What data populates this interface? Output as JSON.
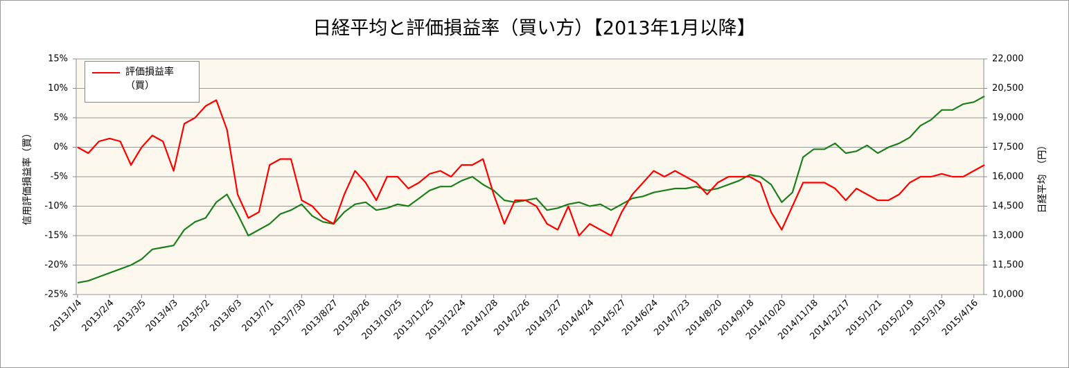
{
  "chart_data": {
    "type": "line",
    "title": "日経平均と評価損益率（買い方）【2013年1月以降】",
    "y_label": "信用評価損益率（買）",
    "y2_label": "日経平均　（円）",
    "categories": [
      "2013/1/4",
      null,
      null,
      "2013/2/4",
      null,
      null,
      "2013/3/5",
      null,
      null,
      "2013/4/3",
      null,
      null,
      "2013/5/2",
      null,
      null,
      "2013/6/3",
      null,
      null,
      "2013/7/1",
      null,
      null,
      "2013/7/30",
      null,
      null,
      "2013/8/27",
      null,
      null,
      "2013/9/26",
      null,
      null,
      "2013/10/25",
      null,
      null,
      "2013/11/25",
      null,
      null,
      "2013/12/24",
      null,
      null,
      "2014/1/28",
      null,
      null,
      "2014/2/26",
      null,
      null,
      "2014/3/27",
      null,
      null,
      "2014/4/24",
      null,
      null,
      "2014/5/27",
      null,
      null,
      "2014/6/24",
      null,
      null,
      "2014/7/23",
      null,
      null,
      "2014/8/20",
      null,
      null,
      "2014/9/18",
      null,
      null,
      "2014/10/20",
      null,
      null,
      "2014/11/18",
      null,
      null,
      "2014/12/17",
      null,
      null,
      "2015/1/21",
      null,
      null,
      "2015/2/19",
      null,
      null,
      "2015/3/19",
      null,
      null,
      "2015/4/16",
      null
    ],
    "series": [
      {
        "name": "評価損益率（買）",
        "color": "#ff0000",
        "values": [
          0,
          -1,
          1,
          1.5,
          1,
          -3,
          0,
          2,
          1,
          -4,
          4,
          5,
          7,
          8,
          3,
          -8,
          -12,
          -11,
          -3,
          -2,
          -2,
          -9,
          -10,
          -12,
          -13,
          -8,
          -4,
          -6,
          -9,
          -5,
          -5,
          -7,
          -6,
          -4.5,
          -4,
          -5,
          -3,
          -3,
          -2,
          -8,
          -13,
          -9,
          -9,
          -10,
          -13,
          -14,
          -10,
          -15,
          -13,
          -14,
          -15,
          -11,
          -8,
          -6,
          -4,
          -5,
          -4,
          -5,
          -6,
          -8,
          -6,
          -5,
          -5,
          -5,
          -6,
          -11,
          -14,
          -10,
          -6,
          -6,
          -6,
          -7,
          -9,
          -7,
          -8,
          -9,
          -9,
          -8,
          -6,
          -5,
          -5,
          -4.5,
          -5,
          -5,
          -4,
          -3
        ]
      },
      {
        "color": "#1a7f1a",
        "axis": "y2",
        "values": [
          10600,
          10700,
          10900,
          11100,
          11300,
          11500,
          11800,
          12300,
          12400,
          12500,
          13300,
          13700,
          13900,
          14700,
          15100,
          14100,
          13000,
          13300,
          13600,
          14100,
          14300,
          14600,
          14000,
          13700,
          13600,
          14200,
          14600,
          14700,
          14300,
          14400,
          14600,
          14500,
          14900,
          15300,
          15500,
          15500,
          15800,
          16000,
          15600,
          15300,
          14800,
          14700,
          14800,
          14900,
          14300,
          14400,
          14600,
          14700,
          14500,
          14600,
          14300,
          14600,
          14900,
          15000,
          15200,
          15300,
          15400,
          15400,
          15500,
          15300,
          15400,
          15600,
          15800,
          16100,
          16000,
          15600,
          14700,
          15200,
          17000,
          17400,
          17400,
          17700,
          17200,
          17300,
          17600,
          17200,
          17500,
          17700,
          18000,
          18600,
          18900,
          19400,
          19400,
          19700,
          19800,
          20100
        ]
      }
    ],
    "ylim": [
      -25,
      15
    ],
    "yticks": [
      {
        "value": 15,
        "label": "15%"
      },
      {
        "value": 10,
        "label": "10%"
      },
      {
        "value": 5,
        "label": "5%"
      },
      {
        "value": 0,
        "label": "0%"
      },
      {
        "value": -5,
        "label": "-5%"
      },
      {
        "value": -10,
        "label": "-10%"
      },
      {
        "value": -15,
        "label": "-15%"
      },
      {
        "value": -20,
        "label": "-20%"
      },
      {
        "value": -25,
        "label": "-25%"
      }
    ],
    "y2lim": [
      10000,
      22000
    ],
    "y2ticks": [
      {
        "value": 22000,
        "label": "22,000"
      },
      {
        "value": 20500,
        "label": "20,500"
      },
      {
        "value": 19000,
        "label": "19,000"
      },
      {
        "value": 17500,
        "label": "17,500"
      },
      {
        "value": 16000,
        "label": "16,000"
      },
      {
        "value": 14500,
        "label": "14,500"
      },
      {
        "value": 13000,
        "label": "13,000"
      },
      {
        "value": 11500,
        "label": "11,500"
      },
      {
        "value": 10000,
        "label": "10,000"
      }
    ],
    "grid": true,
    "legend": "upper left"
  }
}
